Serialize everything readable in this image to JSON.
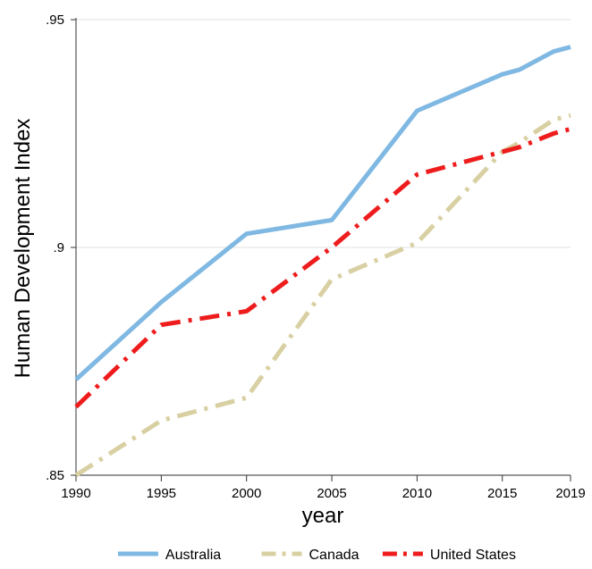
{
  "chart_data": {
    "type": "line",
    "title": "",
    "xlabel": "year",
    "ylabel": "Human Development Index",
    "xlim": [
      1990,
      2019
    ],
    "ylim": [
      0.85,
      0.95
    ],
    "x_ticks": [
      1990,
      1995,
      2000,
      2005,
      2010,
      2015,
      2019
    ],
    "x_tick_labels": [
      "1990",
      "1995",
      "2000",
      "2005",
      "2010",
      "2015",
      "2019"
    ],
    "y_ticks": [
      0.85,
      0.9,
      0.95
    ],
    "y_tick_labels": [
      ".85",
      ".9",
      ".95"
    ],
    "grid": "horizontal",
    "legend_position": "bottom",
    "series": [
      {
        "name": "Australia",
        "color": "#7fb8e2",
        "dash": "solid",
        "x": [
          1990,
          1995,
          2000,
          2005,
          2010,
          2015,
          2016,
          2018,
          2019
        ],
        "y": [
          0.871,
          0.888,
          0.903,
          0.906,
          0.93,
          0.938,
          0.939,
          0.943,
          0.944
        ]
      },
      {
        "name": "Canada",
        "color": "#d8d0a2",
        "dash": "dash-dot",
        "x": [
          1990,
          1995,
          2000,
          2005,
          2010,
          2015,
          2016,
          2018,
          2019
        ],
        "y": [
          0.85,
          0.862,
          0.867,
          0.893,
          0.901,
          0.921,
          0.923,
          0.928,
          0.929
        ]
      },
      {
        "name": "United States",
        "color": "#ee1c1c",
        "dash": "dash-dot",
        "x": [
          1990,
          1995,
          2000,
          2005,
          2010,
          2015,
          2016,
          2018,
          2019
        ],
        "y": [
          0.865,
          0.883,
          0.886,
          0.9,
          0.916,
          0.921,
          0.922,
          0.925,
          0.926
        ]
      }
    ]
  }
}
